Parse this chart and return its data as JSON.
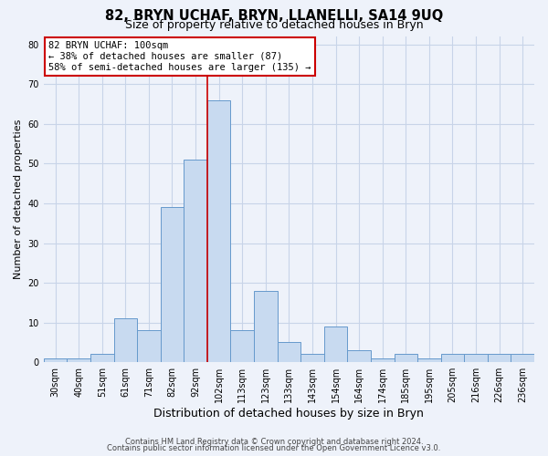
{
  "title": "82, BRYN UCHAF, BRYN, LLANELLI, SA14 9UQ",
  "subtitle": "Size of property relative to detached houses in Bryn",
  "xlabel": "Distribution of detached houses by size in Bryn",
  "ylabel": "Number of detached properties",
  "bar_labels": [
    "30sqm",
    "40sqm",
    "51sqm",
    "61sqm",
    "71sqm",
    "82sqm",
    "92sqm",
    "102sqm",
    "113sqm",
    "123sqm",
    "133sqm",
    "143sqm",
    "154sqm",
    "164sqm",
    "174sqm",
    "185sqm",
    "195sqm",
    "205sqm",
    "216sqm",
    "226sqm",
    "236sqm"
  ],
  "bar_values": [
    1,
    1,
    2,
    11,
    8,
    39,
    51,
    66,
    8,
    18,
    5,
    2,
    9,
    3,
    1,
    2,
    1,
    2,
    2,
    2,
    2
  ],
  "bar_color": "#c8daf0",
  "bar_edge_color": "#6699cc",
  "bar_edge_width": 0.7,
  "grid_color": "#c8d4e8",
  "background_color": "#eef2fa",
  "vline_index": 7,
  "vline_color": "#cc0000",
  "annotation_title": "82 BRYN UCHAF: 100sqm",
  "annotation_line1": "← 38% of detached houses are smaller (87)",
  "annotation_line2": "58% of semi-detached houses are larger (135) →",
  "annotation_box_color": "#ffffff",
  "annotation_border_color": "#cc0000",
  "ylim": [
    0,
    82
  ],
  "yticks": [
    0,
    10,
    20,
    30,
    40,
    50,
    60,
    70,
    80
  ],
  "footer1": "Contains HM Land Registry data © Crown copyright and database right 2024.",
  "footer2": "Contains public sector information licensed under the Open Government Licence v3.0.",
  "title_fontsize": 10.5,
  "subtitle_fontsize": 9,
  "xlabel_fontsize": 9,
  "ylabel_fontsize": 8,
  "tick_fontsize": 7,
  "annotation_fontsize": 7.5,
  "footer_fontsize": 6
}
